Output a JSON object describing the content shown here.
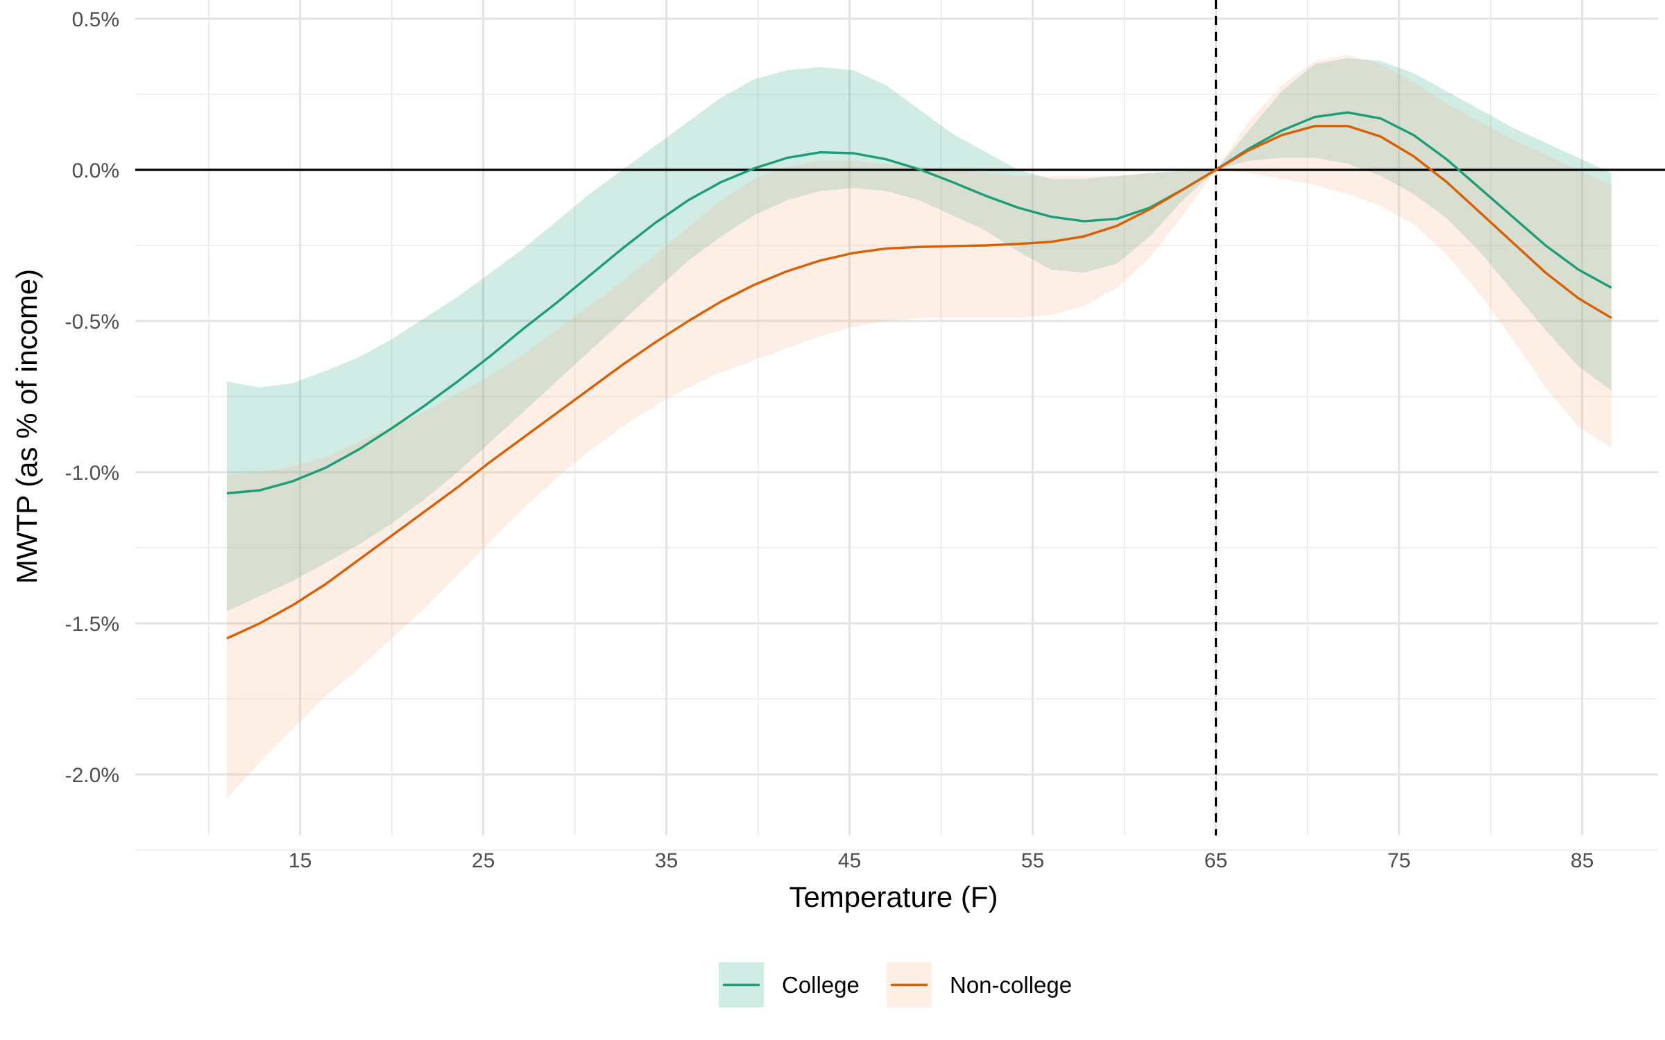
{
  "chart_data": {
    "type": "line",
    "xlabel": "Temperature (F)",
    "ylabel": "MWTP (as % of income)",
    "xlim": [
      6,
      90
    ],
    "ylim": [
      -2.2,
      0.5
    ],
    "x_ticks": [
      15,
      25,
      35,
      45,
      55,
      65,
      75,
      85
    ],
    "y_ticks": [
      0.5,
      0.0,
      -0.5,
      -1.0,
      -1.5,
      -2.0
    ],
    "y_tick_labels": [
      "0.5%",
      "0.0%",
      "-0.5%",
      "-1.0%",
      "-1.5%",
      "-2.0%"
    ],
    "grid": true,
    "reference_lines": {
      "horizontal_y": 0,
      "vertical_dashed_x": 65
    },
    "legend_position": "bottom",
    "series": [
      {
        "name": "College",
        "color": "#1b9e77",
        "band_color": "#1b9e77",
        "x": [
          11,
          12.8,
          14.6,
          16.4,
          18.2,
          20,
          21.8,
          23.6,
          25.4,
          27.2,
          29,
          30.8,
          32.6,
          34.4,
          36.2,
          38,
          39.8,
          41.6,
          43.4,
          45.2,
          47,
          48.8,
          50.6,
          52.4,
          54.2,
          56,
          57.8,
          59.6,
          61.4,
          63.2,
          65,
          66.8,
          68.6,
          70.4,
          72.2,
          74,
          75.8,
          77.6,
          79.4,
          81.2,
          83,
          84.8,
          86.6
        ],
        "y": [
          -1.07,
          -1.06,
          -1.03,
          -0.985,
          -0.925,
          -0.855,
          -0.78,
          -0.7,
          -0.615,
          -0.525,
          -0.44,
          -0.35,
          -0.26,
          -0.175,
          -0.1,
          -0.04,
          0.005,
          0.04,
          0.058,
          0.055,
          0.035,
          0.002,
          -0.04,
          -0.085,
          -0.125,
          -0.155,
          -0.17,
          -0.162,
          -0.125,
          -0.065,
          0.0,
          0.07,
          0.13,
          0.175,
          0.19,
          0.17,
          0.115,
          0.035,
          -0.06,
          -0.155,
          -0.25,
          -0.33,
          -0.39
        ],
        "lower": [
          -1.46,
          -1.41,
          -1.36,
          -1.3,
          -1.24,
          -1.17,
          -1.09,
          -1.0,
          -0.9,
          -0.8,
          -0.7,
          -0.6,
          -0.5,
          -0.4,
          -0.3,
          -0.22,
          -0.15,
          -0.1,
          -0.07,
          -0.06,
          -0.07,
          -0.1,
          -0.15,
          -0.2,
          -0.27,
          -0.33,
          -0.34,
          -0.31,
          -0.22,
          -0.1,
          0.0,
          0.03,
          0.04,
          0.04,
          0.02,
          -0.02,
          -0.08,
          -0.16,
          -0.27,
          -0.4,
          -0.53,
          -0.65,
          -0.73
        ],
        "upper": [
          -0.7,
          -0.72,
          -0.705,
          -0.665,
          -0.62,
          -0.56,
          -0.49,
          -0.42,
          -0.34,
          -0.26,
          -0.17,
          -0.08,
          0.0,
          0.08,
          0.16,
          0.24,
          0.3,
          0.33,
          0.34,
          0.33,
          0.28,
          0.2,
          0.12,
          0.06,
          0.0,
          -0.03,
          -0.03,
          -0.02,
          -0.01,
          -0.004,
          0.0,
          0.13,
          0.26,
          0.35,
          0.37,
          0.36,
          0.32,
          0.26,
          0.2,
          0.14,
          0.09,
          0.04,
          -0.01
        ]
      },
      {
        "name": "Non-college",
        "color": "#d95f02",
        "band_color": "#f4b183",
        "x": [
          11,
          12.8,
          14.6,
          16.4,
          18.2,
          20,
          21.8,
          23.6,
          25.4,
          27.2,
          29,
          30.8,
          32.6,
          34.4,
          36.2,
          38,
          39.8,
          41.6,
          43.4,
          45.2,
          47,
          48.8,
          50.6,
          52.4,
          54.2,
          56,
          57.8,
          59.6,
          61.4,
          63.2,
          65,
          66.8,
          68.6,
          70.4,
          72.2,
          74,
          75.8,
          77.6,
          79.4,
          81.2,
          83,
          84.8,
          86.6
        ],
        "y": [
          -1.55,
          -1.5,
          -1.44,
          -1.37,
          -1.29,
          -1.21,
          -1.13,
          -1.05,
          -0.965,
          -0.885,
          -0.805,
          -0.725,
          -0.645,
          -0.57,
          -0.5,
          -0.435,
          -0.38,
          -0.335,
          -0.3,
          -0.275,
          -0.26,
          -0.255,
          -0.252,
          -0.25,
          -0.245,
          -0.238,
          -0.22,
          -0.185,
          -0.13,
          -0.065,
          0.0,
          0.065,
          0.115,
          0.145,
          0.145,
          0.11,
          0.045,
          -0.04,
          -0.14,
          -0.24,
          -0.34,
          -0.425,
          -0.49
        ],
        "lower": [
          -2.08,
          -1.96,
          -1.85,
          -1.74,
          -1.65,
          -1.55,
          -1.45,
          -1.34,
          -1.23,
          -1.12,
          -1.02,
          -0.93,
          -0.85,
          -0.78,
          -0.72,
          -0.67,
          -0.63,
          -0.59,
          -0.55,
          -0.52,
          -0.5,
          -0.49,
          -0.49,
          -0.49,
          -0.49,
          -0.48,
          -0.45,
          -0.39,
          -0.29,
          -0.15,
          0.0,
          -0.01,
          -0.03,
          -0.05,
          -0.08,
          -0.12,
          -0.18,
          -0.28,
          -0.41,
          -0.56,
          -0.72,
          -0.85,
          -0.92
        ],
        "upper": [
          -1.01,
          -1.0,
          -0.98,
          -0.95,
          -0.9,
          -0.85,
          -0.8,
          -0.74,
          -0.68,
          -0.61,
          -0.53,
          -0.45,
          -0.37,
          -0.28,
          -0.19,
          -0.1,
          -0.03,
          0.01,
          0.03,
          0.03,
          0.02,
          0.01,
          0.0,
          -0.01,
          -0.02,
          -0.02,
          -0.02,
          -0.02,
          -0.01,
          -0.005,
          0.0,
          0.16,
          0.28,
          0.36,
          0.38,
          0.35,
          0.29,
          0.22,
          0.16,
          0.1,
          0.05,
          0.0,
          -0.05
        ]
      }
    ]
  }
}
